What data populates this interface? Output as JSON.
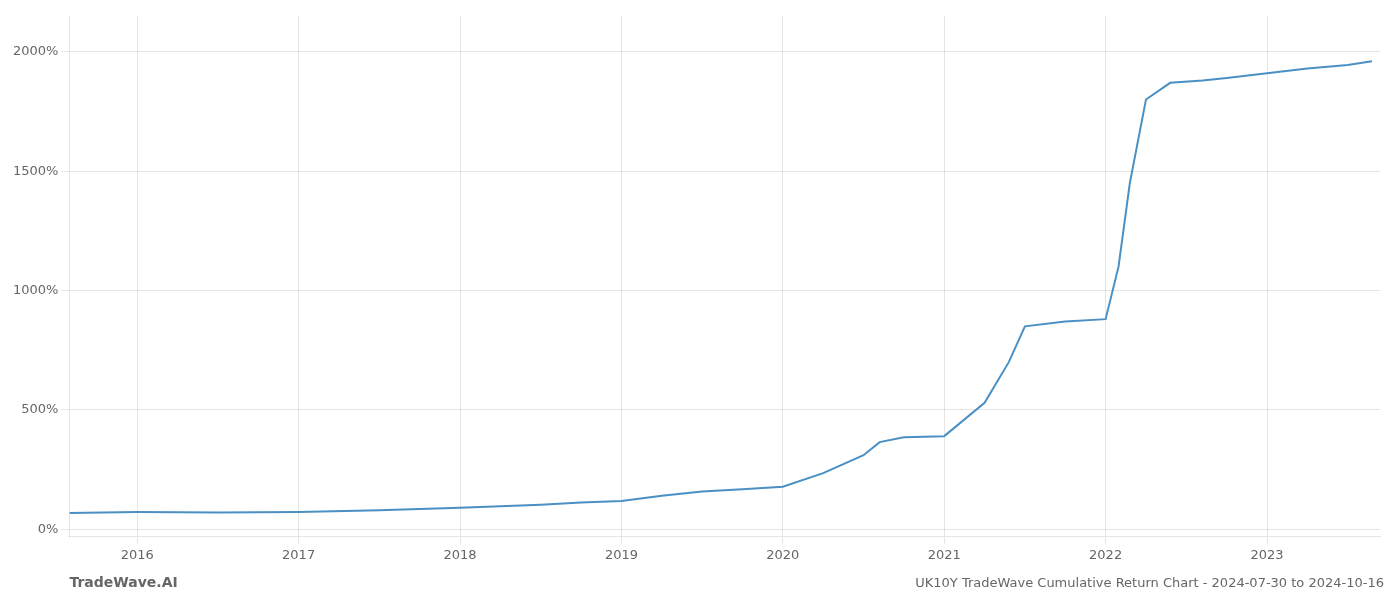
{
  "chart_data": {
    "type": "line",
    "title": "UK10Y TradeWave Cumulative Return Chart - 2024-07-30 to 2024-10-16",
    "annotations": [
      "TradeWave.AI"
    ],
    "x": [
      2015.58,
      2016.0,
      2016.5,
      2017.0,
      2017.5,
      2018.0,
      2018.5,
      2018.75,
      2019.0,
      2019.25,
      2019.5,
      2019.75,
      2020.0,
      2020.25,
      2020.5,
      2020.6,
      2020.75,
      2021.0,
      2021.25,
      2021.4,
      2021.5,
      2021.75,
      2022.0,
      2022.08,
      2022.15,
      2022.25,
      2022.4,
      2022.6,
      2022.75,
      2023.0,
      2023.25,
      2023.5,
      2023.65
    ],
    "values": [
      68,
      72,
      70,
      72,
      80,
      90,
      103,
      112,
      118,
      140,
      158,
      168,
      178,
      235,
      310,
      365,
      385,
      390,
      530,
      700,
      850,
      870,
      880,
      1100,
      1450,
      1800,
      1870,
      1880,
      1890,
      1910,
      1930,
      1945,
      1960
    ],
    "color": "#4a90c4",
    "xlim": [
      2015.58,
      2023.7
    ],
    "xticks": [
      2016,
      2017,
      2018,
      2019,
      2020,
      2021,
      2022,
      2023
    ],
    "ylim": [
      -30,
      2150
    ],
    "yticks": [
      {
        "value": 0,
        "label": "0%"
      },
      {
        "value": 500,
        "label": "500%"
      },
      {
        "value": 1000,
        "label": "1000%"
      },
      {
        "value": 1500,
        "label": "1500%"
      },
      {
        "value": 2000,
        "label": "2000%"
      }
    ],
    "grid": true
  }
}
